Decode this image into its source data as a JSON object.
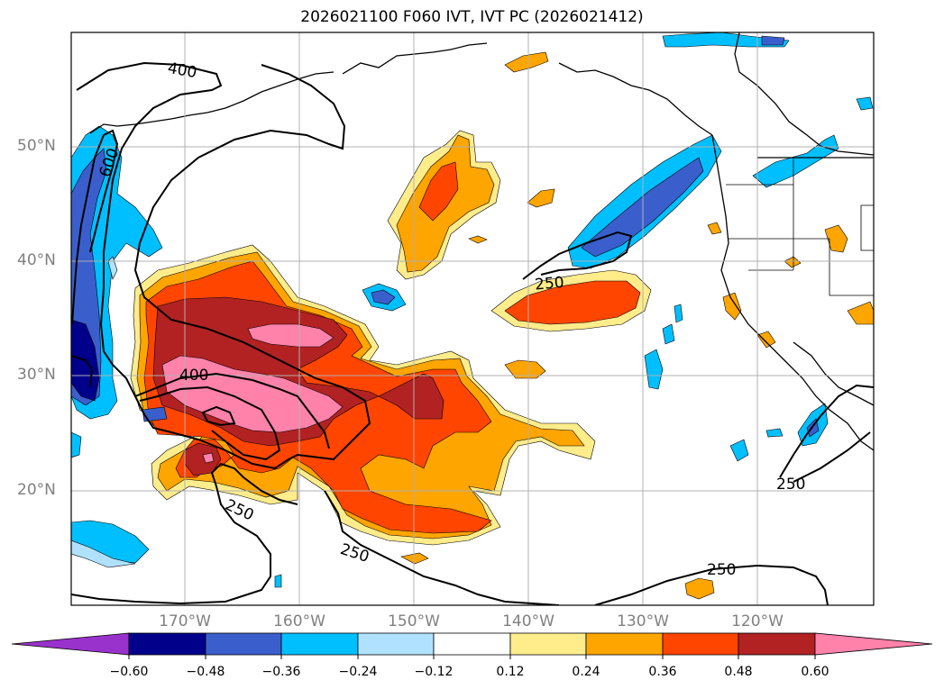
{
  "title": "2026021100 F060 IVT, IVT PC (2026021412)",
  "map": {
    "lon_labels": [
      "170°W",
      "160°W",
      "150°W",
      "140°W",
      "130°W",
      "120°W"
    ],
    "lat_labels": [
      "50°N",
      "40°N",
      "30°N",
      "20°N"
    ],
    "contour_labels": [
      "400",
      "600",
      "250",
      "400",
      "250",
      "250",
      "250",
      "250"
    ]
  },
  "colorbar": {
    "ticks": [
      "−0.60",
      "−0.48",
      "−0.36",
      "−0.24",
      "−0.12",
      "0.12",
      "0.24",
      "0.36",
      "0.48",
      "0.60"
    ],
    "colors": [
      "#9932cc",
      "#00008b",
      "#3a5fcd",
      "#00bfff",
      "#b0e2ff",
      "#ffffff",
      "#ffec8b",
      "#ffa500",
      "#ff4500",
      "#b22222",
      "#ff82ab"
    ]
  }
}
